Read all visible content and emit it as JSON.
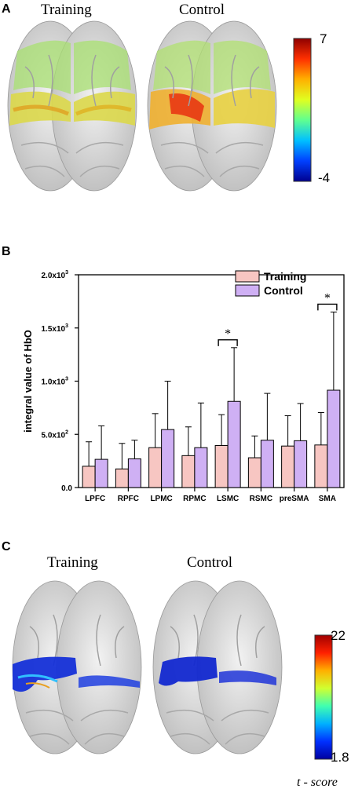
{
  "panel_a": {
    "label": "A",
    "titles": [
      "Training",
      "Control"
    ],
    "colorbar": {
      "max": "7",
      "min": "-4",
      "colors": [
        "#00008f",
        "#0040ff",
        "#00c0ff",
        "#60ff90",
        "#e0ff20",
        "#ffb000",
        "#ff3000",
        "#8f0000"
      ]
    }
  },
  "panel_b": {
    "label": "B",
    "chart_data": {
      "type": "bar",
      "categories": [
        "LPFC",
        "RPFC",
        "LPMC",
        "RPMC",
        "LSMC",
        "RSMC",
        "preSMA",
        "SMA"
      ],
      "series": [
        {
          "name": "Training",
          "color": "#f7c6c2",
          "values": [
            200,
            175,
            375,
            300,
            395,
            280,
            390,
            400
          ],
          "errors": [
            230,
            240,
            320,
            270,
            290,
            205,
            285,
            305
          ]
        },
        {
          "name": "Control",
          "color": "#cfb0f4",
          "values": [
            265,
            270,
            545,
            375,
            810,
            445,
            440,
            915
          ],
          "errors": [
            315,
            175,
            455,
            420,
            505,
            440,
            350,
            735
          ]
        }
      ],
      "ylim": [
        0,
        2000
      ],
      "yticks": [
        {
          "value": 0,
          "label": "0.0",
          "exp": ""
        },
        {
          "value": 500,
          "label": "5.0x10",
          "exp": "2"
        },
        {
          "value": 1000,
          "label": "1.0x10",
          "exp": "3"
        },
        {
          "value": 1500,
          "label": "1.5x10",
          "exp": "3"
        },
        {
          "value": 2000,
          "label": "2.0x10",
          "exp": "3"
        }
      ],
      "ylabel": "integral value of HbO",
      "xlabel": "",
      "legend_position": "top-right",
      "significance": [
        {
          "category": "LSMC",
          "label": "*"
        },
        {
          "category": "SMA",
          "label": "*"
        }
      ]
    }
  },
  "panel_c": {
    "label": "C",
    "titles": [
      "Training",
      "Control"
    ],
    "colorbar": {
      "max": "22",
      "min": "1.8",
      "unit": "t - score",
      "colors": [
        "#0000a0",
        "#0030ff",
        "#00b0ff",
        "#40ffb0",
        "#d0ff30",
        "#ffb000",
        "#ff2000",
        "#a00000"
      ]
    }
  }
}
